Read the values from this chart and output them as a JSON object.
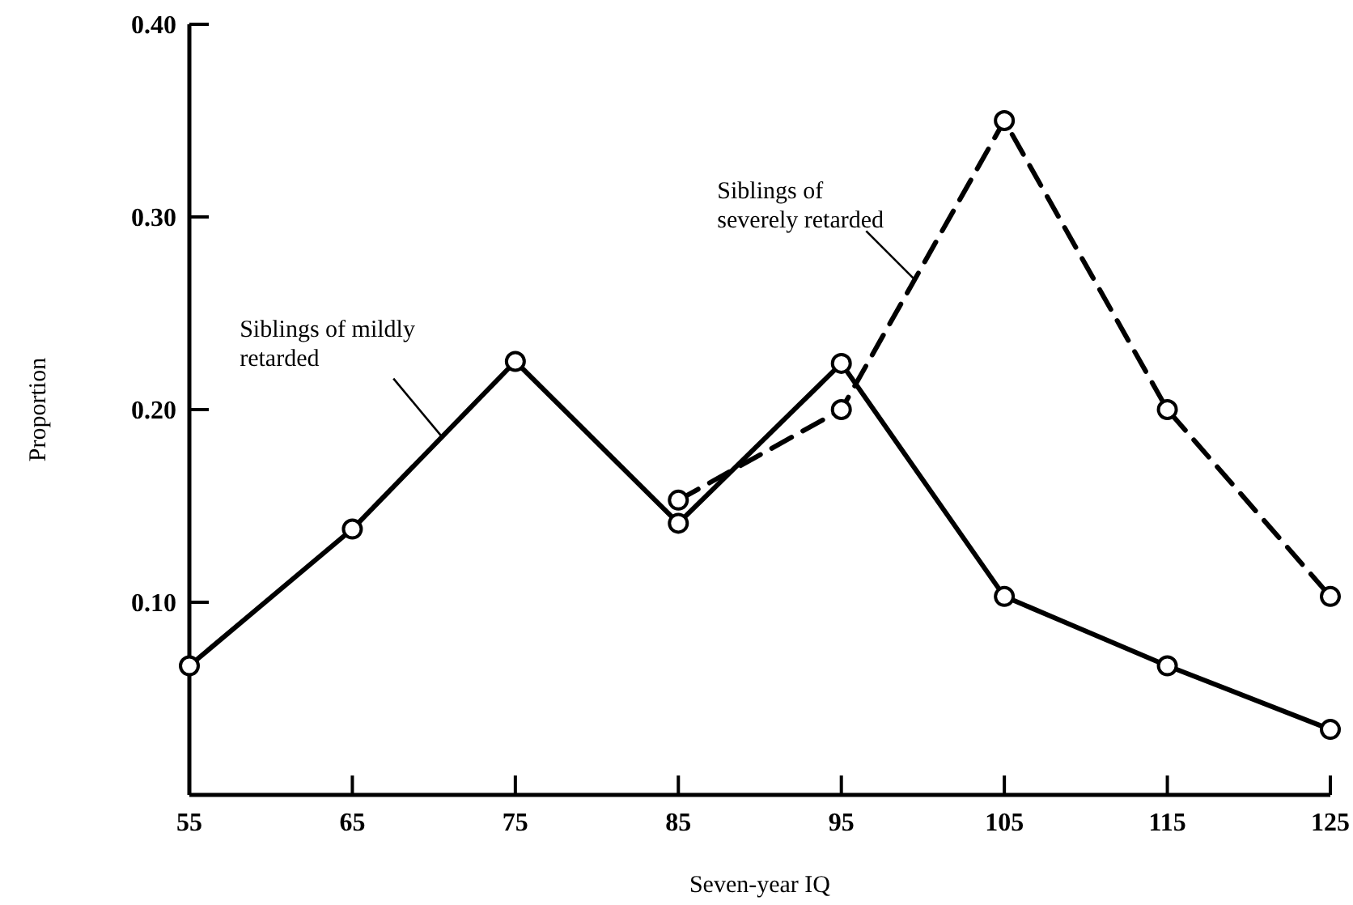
{
  "chart_data": {
    "type": "line",
    "xlabel": "Seven-year IQ",
    "ylabel": "Proportion",
    "xlim": [
      55,
      125
    ],
    "xticks": [
      55,
      65,
      75,
      85,
      95,
      105,
      115,
      125
    ],
    "ylim": [
      0,
      0.4
    ],
    "yticks": [
      {
        "value": 0.1,
        "label": "0.10"
      },
      {
        "value": 0.2,
        "label": "0.20"
      },
      {
        "value": 0.3,
        "label": "0.30"
      },
      {
        "value": 0.4,
        "label": "0.40"
      }
    ],
    "marker": "circle",
    "legend": false,
    "grid": false,
    "series": [
      {
        "name": "Siblings of mildly retarded",
        "color": "#000000",
        "line_style": "solid",
        "x": [
          55,
          65,
          75,
          85,
          95,
          105,
          115,
          125
        ],
        "values": [
          0.067,
          0.138,
          0.225,
          0.141,
          0.224,
          0.103,
          0.067,
          0.034
        ]
      },
      {
        "name": "Siblings of severely retarded",
        "color": "#000000",
        "line_style": "dashed",
        "x": [
          85,
          95,
          105,
          115,
          125
        ],
        "values": [
          0.153,
          0.2,
          0.35,
          0.2,
          0.103
        ]
      }
    ]
  }
}
